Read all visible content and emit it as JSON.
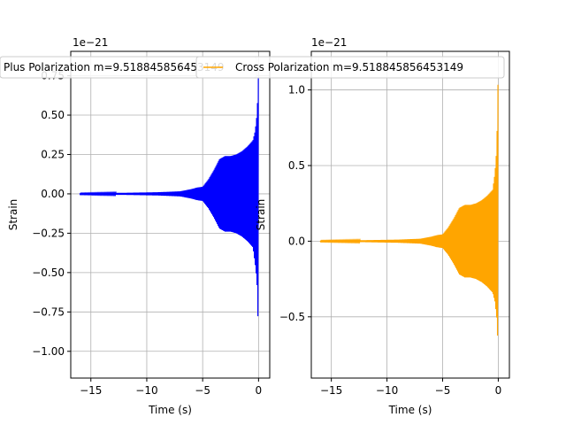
{
  "chart_data": [
    {
      "type": "line",
      "title": "",
      "xlabel": "Time (s)",
      "ylabel": "Strain",
      "y_offset_label": "1e−21",
      "xlim": [
        -16.8,
        1.0
      ],
      "ylim": [
        -1.17,
        0.905
      ],
      "xticks": [
        -15,
        -10,
        -5,
        0
      ],
      "xtick_labels": [
        "−15",
        "−10",
        "−5",
        "0"
      ],
      "yticks": [
        -1.0,
        -0.75,
        -0.5,
        -0.25,
        0.0,
        0.25,
        0.5,
        0.75
      ],
      "ytick_labels": [
        "−1.00",
        "−0.75",
        "−0.50",
        "−0.25",
        "0.00",
        "0.25",
        "0.50",
        "0.75"
      ],
      "grid": true,
      "legend_position": "upper-left",
      "color": "#0000ff",
      "series": [
        {
          "name": "Plus Polarization m=9.518845856453149",
          "envelope": {
            "t": [
              -16,
              -12,
              -9,
              -7,
              -6,
              -5.5,
              -5,
              -4.5,
              -4,
              -3.5,
              -3,
              -2.5,
              -2,
              -1.5,
              -1,
              -0.5,
              -0.3,
              -0.15,
              -0.05,
              0
            ],
            "upper": [
              0.003,
              0.006,
              0.01,
              0.016,
              0.03,
              0.04,
              0.045,
              0.09,
              0.15,
              0.22,
              0.24,
              0.24,
              0.25,
              0.27,
              0.3,
              0.34,
              0.4,
              0.5,
              0.65,
              0.8
            ],
            "lower": [
              -0.003,
              -0.006,
              -0.01,
              -0.016,
              -0.03,
              -0.04,
              -0.045,
              -0.09,
              -0.15,
              -0.22,
              -0.24,
              -0.24,
              -0.25,
              -0.27,
              -0.3,
              -0.34,
              -0.45,
              -0.55,
              -0.8,
              -1.06
            ]
          }
        }
      ]
    },
    {
      "type": "line",
      "title": "",
      "xlabel": "Time (s)",
      "ylabel": "Strain",
      "y_offset_label": "1e−21",
      "xlim": [
        -16.8,
        1.0
      ],
      "ylim": [
        -0.905,
        1.255
      ],
      "xticks": [
        -15,
        -10,
        -5,
        0
      ],
      "xtick_labels": [
        "−15",
        "−10",
        "−5",
        "0"
      ],
      "yticks": [
        -0.5,
        0.0,
        0.5,
        1.0
      ],
      "ytick_labels": [
        "−0.5",
        "0.0",
        "0.5",
        "1.0"
      ],
      "grid": true,
      "legend_position": "upper-left",
      "color": "#ffa500",
      "series": [
        {
          "name": "Cross Polarization m=9.518845856453149",
          "envelope": {
            "t": [
              -16,
              -12,
              -9,
              -7,
              -6,
              -5.5,
              -5,
              -4.5,
              -4,
              -3.5,
              -3,
              -2.5,
              -2,
              -1.5,
              -1,
              -0.5,
              -0.3,
              -0.15,
              -0.05,
              0
            ],
            "upper": [
              0.003,
              0.006,
              0.01,
              0.016,
              0.03,
              0.04,
              0.045,
              0.09,
              0.15,
              0.22,
              0.24,
              0.24,
              0.25,
              0.27,
              0.3,
              0.34,
              0.45,
              0.6,
              0.9,
              1.2
            ],
            "lower": [
              -0.003,
              -0.006,
              -0.01,
              -0.016,
              -0.03,
              -0.04,
              -0.045,
              -0.09,
              -0.15,
              -0.22,
              -0.24,
              -0.24,
              -0.25,
              -0.27,
              -0.3,
              -0.34,
              -0.4,
              -0.5,
              -0.65,
              -0.82
            ]
          }
        }
      ]
    }
  ]
}
